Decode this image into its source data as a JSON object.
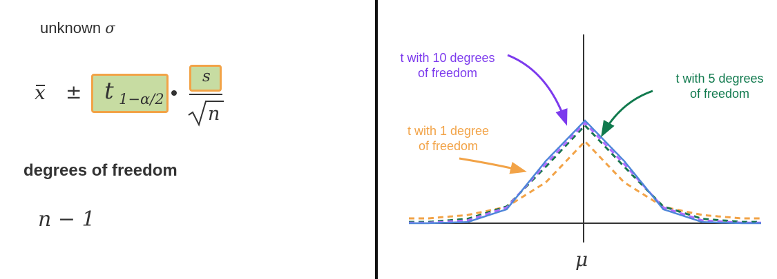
{
  "left": {
    "unknown_text": "unknown",
    "sigma_symbol": "σ",
    "formula": {
      "xbar": "x",
      "plus_minus": "±",
      "t_symbol": "t",
      "t_subscript": "1−α/2",
      "s_symbol": "s",
      "sqrt_n": "n"
    },
    "dof_heading": "degrees of freedom",
    "n_minus_one": "n − 1"
  },
  "chart": {
    "center_label": "μ",
    "labels": {
      "t10": [
        "t with 10 degrees",
        "of freedom"
      ],
      "t5": [
        "t with 5 degrees",
        "of freedom"
      ],
      "t1": [
        "t with 1 degree",
        "of freedom"
      ]
    },
    "colors": {
      "normal": "#4f86d9",
      "t10": "#b06cff",
      "t5": "#16754c",
      "t1": "#f2a347",
      "axis": "#333333",
      "divider": "#111111",
      "highlight_fill": "#c7dca2"
    }
  },
  "chart_data": {
    "type": "line",
    "series": [
      {
        "name": "",
        "x": [
          -4,
          -3,
          -2,
          -1,
          0,
          1,
          2,
          3,
          4
        ],
        "values": [
          0.0001,
          0.0044,
          0.054,
          0.242,
          0.399,
          0.242,
          0.054,
          0.0044,
          0.0001
        ]
      },
      {
        "name": "t with 10 degrees of freedom",
        "x": [
          -4,
          -3,
          -2,
          -1,
          0,
          1,
          2,
          3,
          4
        ],
        "values": [
          0.002,
          0.011,
          0.061,
          0.23,
          0.389,
          0.23,
          0.061,
          0.011,
          0.002
        ]
      },
      {
        "name": "t with 5 degrees of freedom",
        "x": [
          -4,
          -3,
          -2,
          -1,
          0,
          1,
          2,
          3,
          4
        ],
        "values": [
          0.0051,
          0.017,
          0.065,
          0.22,
          0.38,
          0.22,
          0.065,
          0.017,
          0.0051
        ]
      },
      {
        "name": "t with 1 degree of freedom",
        "x": [
          -4,
          -3,
          -2,
          -1,
          0,
          1,
          2,
          3,
          4
        ],
        "values": [
          0.0187,
          0.0318,
          0.0637,
          0.159,
          0.318,
          0.159,
          0.0637,
          0.0318,
          0.0187
        ]
      }
    ],
    "xlim": [
      -4.5,
      4.5
    ],
    "ylim": [
      0,
      0.45
    ],
    "xlabel": "",
    "ylabel": "",
    "grid": false,
    "legend": "annotations"
  }
}
